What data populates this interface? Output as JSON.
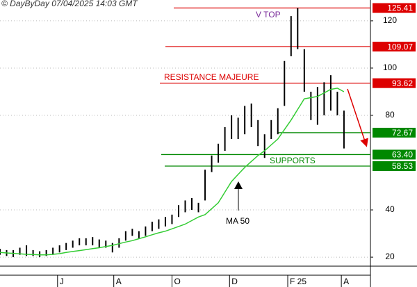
{
  "chart_data": {
    "type": "hilo",
    "source": "© DayByDay 07/04/2025  14:03 GMT",
    "x": [
      0,
      1,
      2,
      3,
      4,
      5,
      6,
      7,
      8,
      9,
      10,
      11,
      12,
      13,
      14,
      15,
      16,
      17,
      18,
      19,
      20,
      21,
      22,
      23,
      24,
      25,
      26,
      27,
      28,
      29,
      30,
      31,
      32,
      33,
      34,
      35,
      36,
      37,
      38,
      39,
      40,
      41,
      42,
      43,
      44,
      45,
      46,
      47,
      48,
      49,
      50,
      51,
      52
    ],
    "series": [
      {
        "color": "#000000",
        "high": [
          23.5,
          23,
          23,
          24,
          25,
          23,
          22.5,
          23,
          24,
          25,
          26,
          27,
          28,
          28,
          28.5,
          27.5,
          27,
          26,
          28,
          31,
          32,
          31,
          33,
          35,
          36,
          37,
          38,
          42,
          44,
          45,
          43,
          57,
          63,
          68,
          75,
          80,
          79,
          84,
          85,
          78,
          72,
          78,
          83,
          103,
          122,
          125.41,
          108,
          90,
          92,
          94,
          97,
          90,
          82
        ],
        "low": [
          21,
          20.5,
          20,
          21,
          20.5,
          20.5,
          20,
          20.5,
          21,
          22,
          23,
          24,
          25,
          25,
          25,
          24,
          24,
          22,
          24,
          27,
          29,
          28,
          29,
          31,
          32,
          33,
          34,
          37,
          39,
          40,
          39,
          44,
          56,
          60,
          65,
          70,
          70,
          72,
          75,
          67,
          62,
          70,
          72,
          84,
          105,
          108,
          90,
          78,
          76,
          80,
          82,
          80,
          66
        ]
      },
      {
        "color": "#33cc33",
        "values": [
          22,
          21.8,
          21.6,
          21.4,
          21.2,
          21.1,
          21,
          21,
          21.2,
          21.5,
          22,
          22.4,
          22.8,
          23.2,
          23.6,
          24,
          24.5,
          25,
          25.7,
          26.4,
          27,
          27.8,
          28.6,
          29.5,
          30.3,
          31,
          32,
          33,
          34,
          35.5,
          37,
          38,
          40.5,
          43,
          47.5,
          52,
          55,
          58,
          60.5,
          63,
          65,
          67.5,
          70,
          74,
          78,
          82.5,
          87,
          87.5,
          88,
          89.5,
          91,
          91.5,
          90
        ]
      }
    ],
    "xlim": [
      0,
      56
    ],
    "xticks": [
      {
        "value": 8.7,
        "label": "J"
      },
      {
        "value": 17.2,
        "label": "A"
      },
      {
        "value": 26,
        "label": "O"
      },
      {
        "value": 34.7,
        "label": "D"
      },
      {
        "value": 43.5,
        "label": "F 25"
      },
      {
        "value": 51.6,
        "label": "A"
      }
    ],
    "ylim": [
      16.2,
      128.8
    ],
    "yticks": [
      20,
      40,
      80,
      100,
      120
    ],
    "grid": true,
    "levels": [
      {
        "value": 125.41,
        "label": "125.41",
        "color": "#dd0000"
      },
      {
        "value": 109.07,
        "label": "109.07",
        "color": "#dd0000"
      },
      {
        "value": 93.62,
        "label": "93.62",
        "color": "#dd0000"
      },
      {
        "value": 72.67,
        "label": "72.67",
        "color": "#008800"
      },
      {
        "value": 63.4,
        "label": "63.40",
        "color": "#008800"
      },
      {
        "value": 58.53,
        "label": "58.53",
        "color": "#008800"
      }
    ],
    "annotations": [
      "V TOP",
      "RESISTANCE MAJEURE",
      "SUPPORTS",
      "MA 50"
    ]
  }
}
